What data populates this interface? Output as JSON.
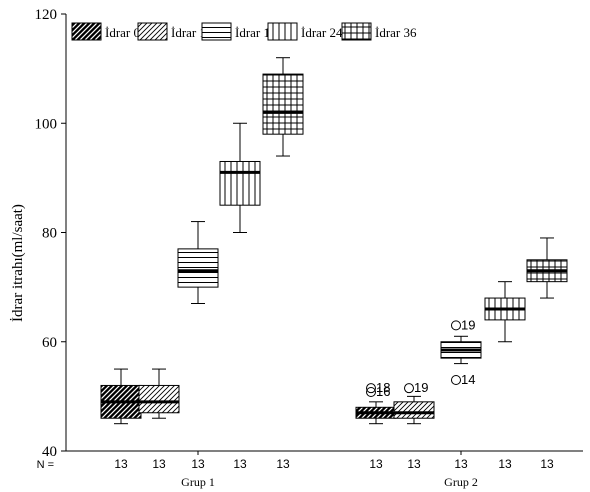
{
  "chart_data": {
    "type": "box",
    "ylabel": "İdrar itrahı(ml/saat)",
    "ylim": [
      40,
      120
    ],
    "yticks": [
      40,
      60,
      80,
      100,
      120
    ],
    "n_label": "N =",
    "groups": [
      "Grup 1",
      "Grup 2"
    ],
    "legend_position": "top-left",
    "series": [
      {
        "name": "İdrar 0",
        "pattern": "diagonal-dark"
      },
      {
        "name": "İdrar 12",
        "pattern": "diagonal-light"
      },
      {
        "name": "İdrar 16",
        "pattern": "horizontal"
      },
      {
        "name": "İdrar 24",
        "pattern": "vertical"
      },
      {
        "name": "İdrar 36",
        "pattern": "grid"
      }
    ],
    "boxes": [
      {
        "group": "Grup 1",
        "series": "İdrar 0",
        "n": "13",
        "min": 45,
        "q1": 46,
        "median": 49,
        "q3": 52,
        "max": 55,
        "outliers": []
      },
      {
        "group": "Grup 1",
        "series": "İdrar 12",
        "n": "13",
        "min": 46,
        "q1": 47,
        "median": 49,
        "q3": 52,
        "max": 55,
        "outliers": []
      },
      {
        "group": "Grup 1",
        "series": "İdrar 16",
        "n": "13",
        "min": 67,
        "q1": 70,
        "median": 73,
        "q3": 77,
        "max": 82,
        "outliers": []
      },
      {
        "group": "Grup 1",
        "series": "İdrar 24",
        "n": "13",
        "min": 80,
        "q1": 85,
        "median": 91,
        "q3": 93,
        "max": 100,
        "outliers": []
      },
      {
        "group": "Grup 1",
        "series": "İdrar 36",
        "n": "13",
        "min": 94,
        "q1": 98,
        "median": 102,
        "q3": 109,
        "max": 112,
        "outliers": []
      },
      {
        "group": "Grup 2",
        "series": "İdrar 0",
        "n": "13",
        "min": 45,
        "q1": 46,
        "median": 47,
        "q3": 48,
        "max": 49,
        "outliers": [
          {
            "value": 51.5,
            "label": "18"
          },
          {
            "value": 50.8,
            "label": "16"
          }
        ]
      },
      {
        "group": "Grup 2",
        "series": "İdrar 12",
        "n": "13",
        "min": 45,
        "q1": 46,
        "median": 47,
        "q3": 49,
        "max": 50,
        "outliers": [
          {
            "value": 51.5,
            "label": "19"
          }
        ]
      },
      {
        "group": "Grup 2",
        "series": "İdrar 16",
        "n": "13",
        "min": 56,
        "q1": 57,
        "median": 58.5,
        "q3": 60,
        "max": 61,
        "outliers": [
          {
            "value": 63,
            "label": "19"
          },
          {
            "value": 53,
            "label": "14"
          }
        ]
      },
      {
        "group": "Grup 2",
        "series": "İdrar 24",
        "n": "13",
        "min": 60,
        "q1": 64,
        "median": 66,
        "q3": 68,
        "max": 71,
        "outliers": []
      },
      {
        "group": "Grup 2",
        "series": "İdrar 36",
        "n": "13",
        "min": 68,
        "q1": 71,
        "median": 73,
        "q3": 75,
        "max": 79,
        "outliers": []
      }
    ]
  }
}
